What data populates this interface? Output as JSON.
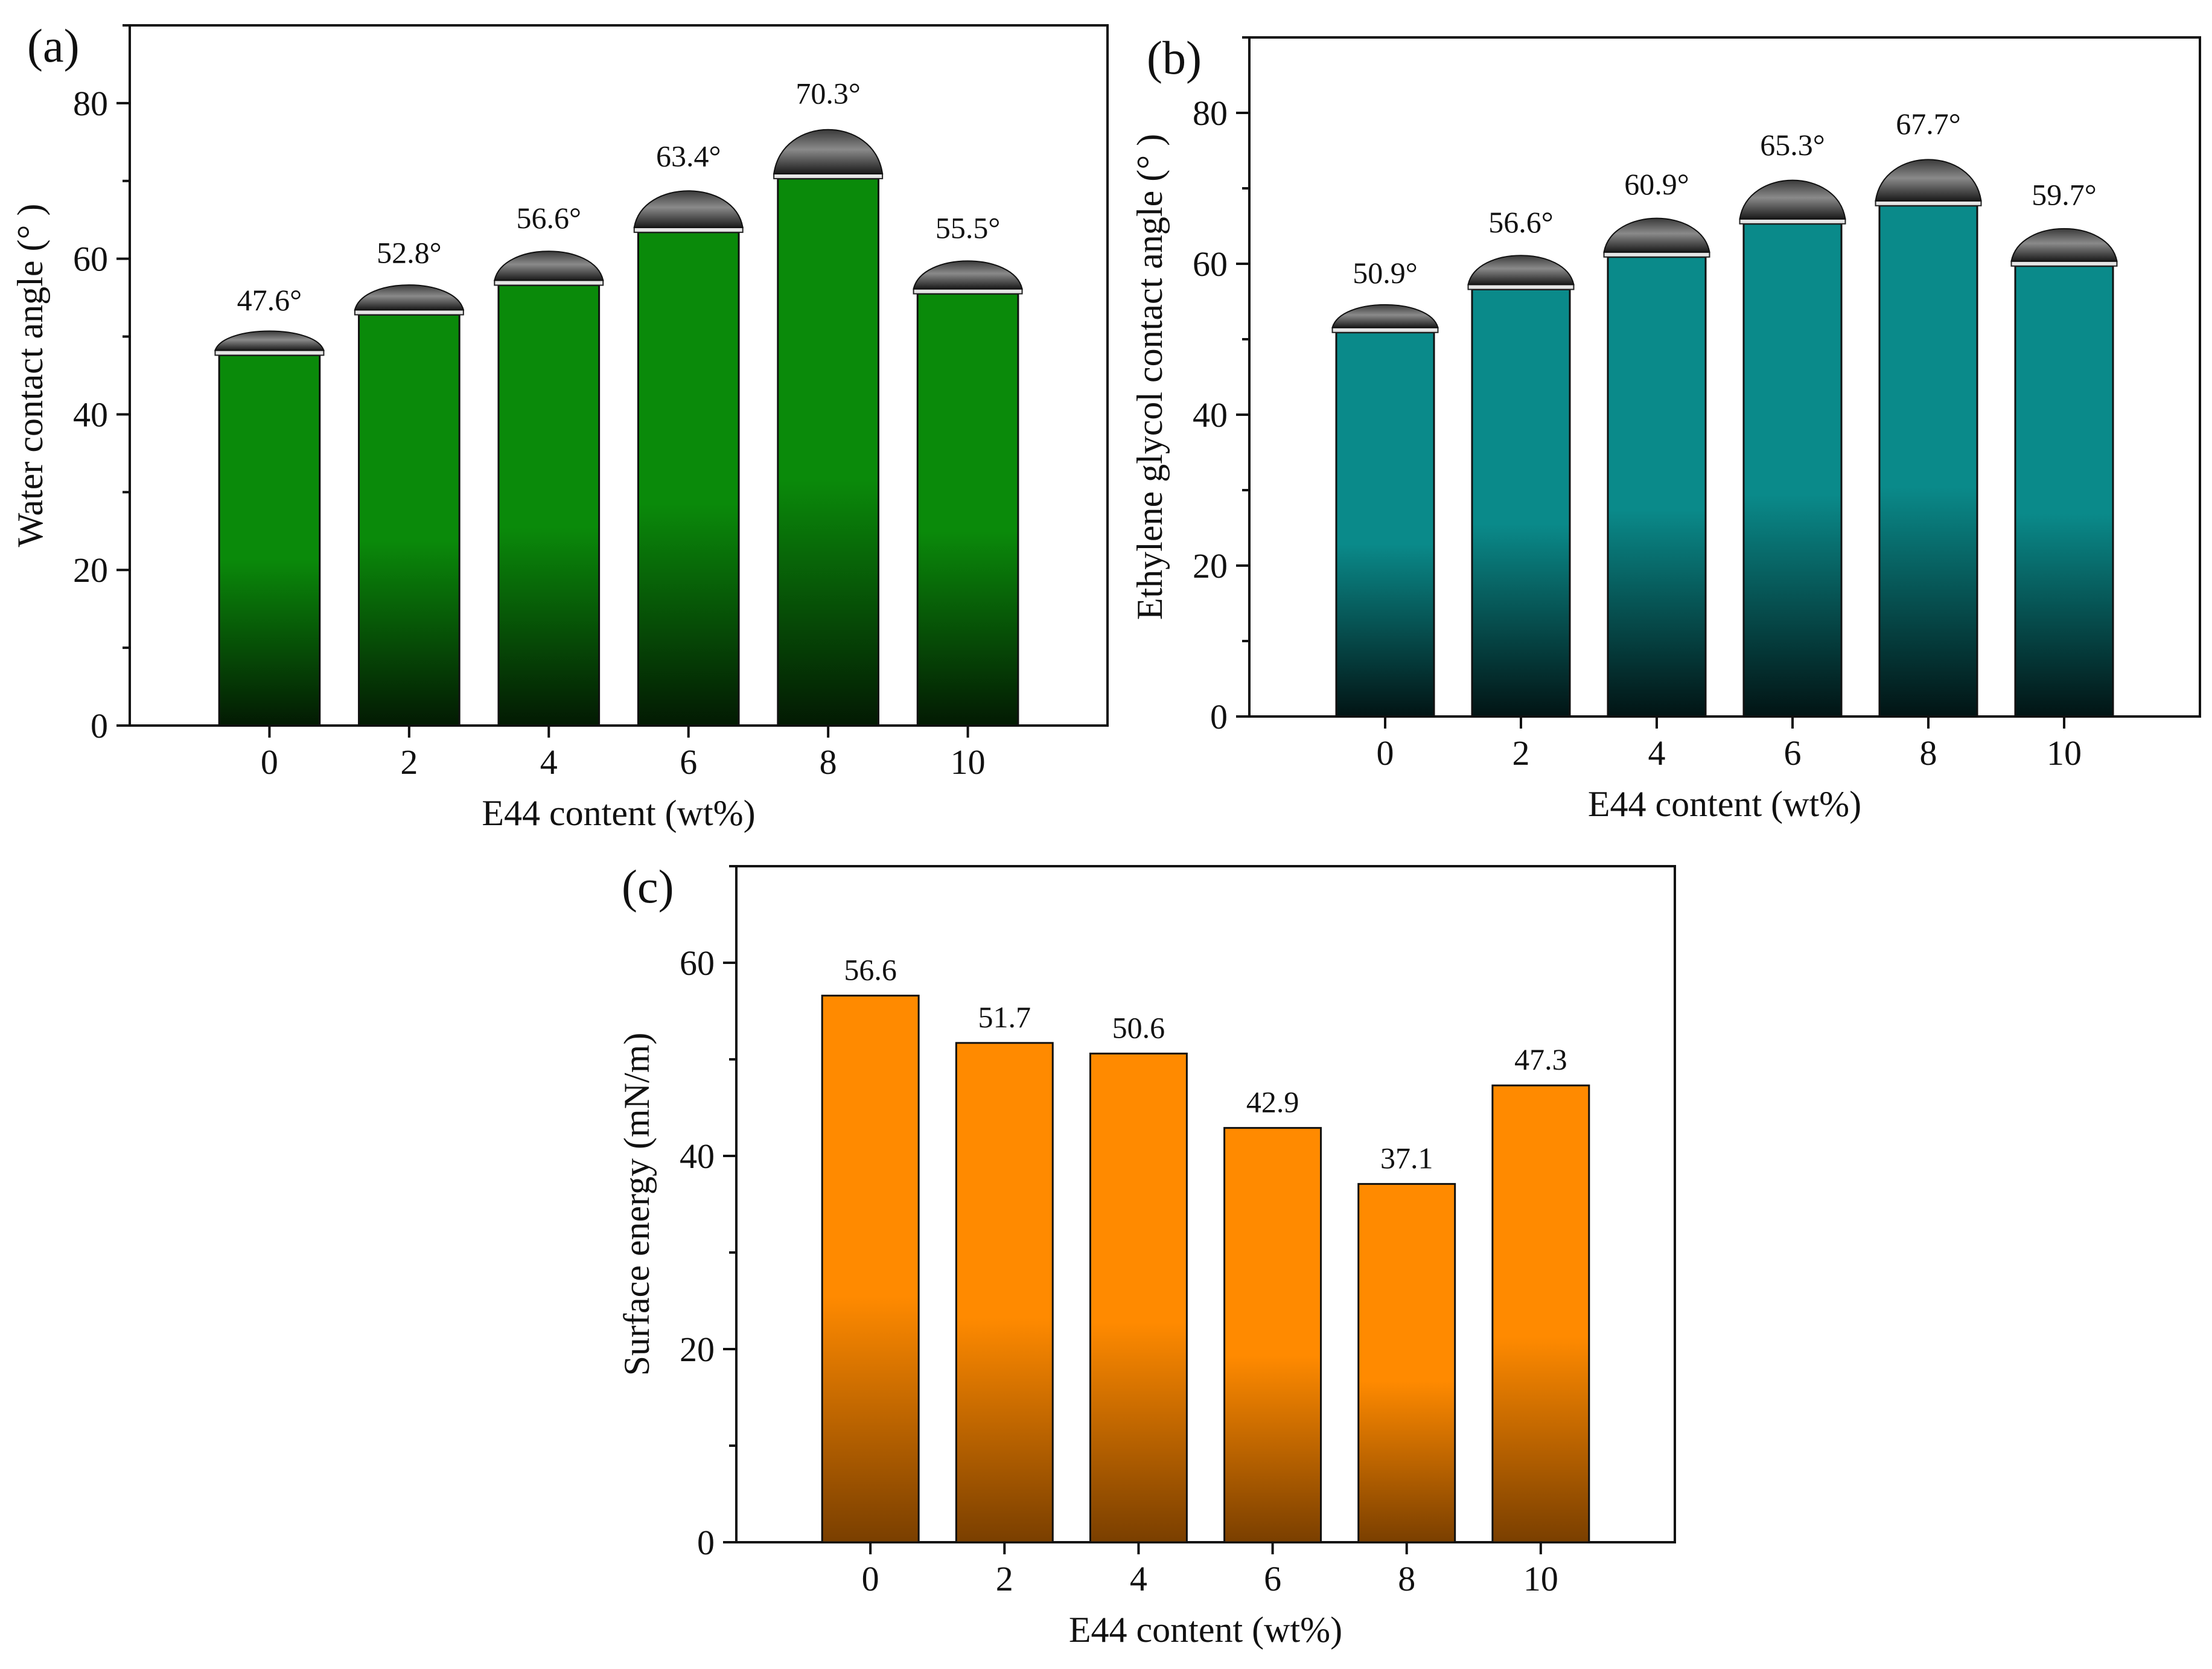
{
  "chart_data": [
    {
      "type": "bar",
      "panel_label": "(a)",
      "categories": [
        "0",
        "2",
        "4",
        "6",
        "8",
        "10"
      ],
      "values": [
        47.6,
        52.8,
        56.6,
        63.4,
        70.3,
        55.5
      ],
      "data_labels": [
        "47.6°",
        "52.8°",
        "56.6°",
        "63.4°",
        "70.3°",
        "55.5°"
      ],
      "xlabel": "E44 content (wt%)",
      "ylabel": "Water contact angle (° )",
      "ylim": [
        0,
        90
      ],
      "yticks": [
        0,
        20,
        40,
        60,
        80
      ],
      "grid": false,
      "bar_color_top": "#0a8a0a",
      "bar_color_bottom": "#031a03",
      "droplet": true
    },
    {
      "type": "bar",
      "panel_label": "(b)",
      "categories": [
        "0",
        "2",
        "4",
        "6",
        "8",
        "10"
      ],
      "values": [
        50.9,
        56.6,
        60.9,
        65.3,
        67.7,
        59.7
      ],
      "data_labels": [
        "50.9°",
        "56.6°",
        "60.9°",
        "65.3°",
        "67.7°",
        "59.7°"
      ],
      "xlabel": "E44 content (wt%)",
      "ylabel": "Ethylene glycol contact angle (° )",
      "ylim": [
        0,
        90
      ],
      "yticks": [
        0,
        20,
        40,
        60,
        80
      ],
      "grid": false,
      "bar_color_top": "#0a8a8a",
      "bar_color_bottom": "#021414",
      "droplet": true
    },
    {
      "type": "bar",
      "panel_label": "(c)",
      "categories": [
        "0",
        "2",
        "4",
        "6",
        "8",
        "10"
      ],
      "values": [
        56.6,
        51.7,
        50.6,
        42.9,
        37.1,
        47.3
      ],
      "data_labels": [
        "56.6",
        "51.7",
        "50.6",
        "42.9",
        "37.1",
        "47.3"
      ],
      "xlabel": "E44 content (wt%)",
      "ylabel": "Surface energy (mN/m)",
      "ylim": [
        0,
        70
      ],
      "yticks": [
        0,
        20,
        40,
        60
      ],
      "grid": false,
      "bar_color_top": "#ff8a00",
      "bar_color_bottom": "#7a3f00",
      "droplet": false
    }
  ]
}
